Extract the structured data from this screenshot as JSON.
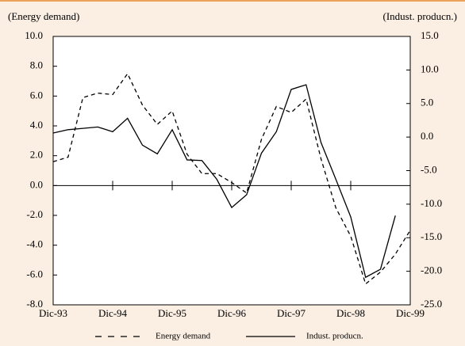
{
  "chart_data": {
    "type": "line",
    "y_label": "(Energy demand)",
    "y2_label": "(Indust. producn.)",
    "categories": [
      "Dic-93",
      null,
      null,
      null,
      "Dic-94",
      null,
      null,
      null,
      "Dic-95",
      null,
      null,
      null,
      "Dic-96",
      null,
      null,
      null,
      "Dic-97",
      null,
      null,
      null,
      "Dic-98",
      null,
      null,
      null,
      "Dic-99"
    ],
    "series": [
      {
        "name": "Energy demand",
        "color": "#000000",
        "line_style": "dashed",
        "values": [
          1.6,
          1.9,
          5.9,
          6.2,
          6.1,
          7.5,
          5.4,
          4.1,
          5.0,
          2.1,
          0.8,
          0.8,
          0.2,
          -0.5,
          3.1,
          5.3,
          4.9,
          5.8,
          1.8,
          -1.5,
          -3.4,
          -6.6,
          -5.8,
          -4.6,
          -3.0
        ]
      },
      {
        "name": "Indust. producn.",
        "color": "#000000",
        "line_style": "solid",
        "axis": "y2",
        "values": [
          0.6,
          1.1,
          1.3,
          1.5,
          0.8,
          2.8,
          -1.2,
          -2.5,
          1.1,
          -3.4,
          -3.5,
          -6.3,
          -10.5,
          -8.6,
          -2.4,
          0.8,
          7.1,
          7.8,
          -0.8,
          -6.3,
          -11.9,
          -20.9,
          -19.7,
          -11.7,
          null
        ]
      }
    ],
    "ylim": [
      -8,
      10
    ],
    "yticks": [
      {
        "value": -8,
        "label": "-8.0"
      },
      {
        "value": -6,
        "label": "-6.0"
      },
      {
        "value": -4,
        "label": "-4.0"
      },
      {
        "value": -2,
        "label": "-2.0"
      },
      {
        "value": 0,
        "label": "0.0"
      },
      {
        "value": 2,
        "label": "2.0"
      },
      {
        "value": 4,
        "label": "4.0"
      },
      {
        "value": 6,
        "label": "6.0"
      },
      {
        "value": 8,
        "label": "8.0"
      },
      {
        "value": 10,
        "label": "10.0"
      }
    ],
    "y2lim": [
      -25,
      15
    ],
    "y2ticks": [
      {
        "value": -25,
        "label": "-25.0"
      },
      {
        "value": -20,
        "label": "-20.0"
      },
      {
        "value": -15,
        "label": "-15.0"
      },
      {
        "value": -10,
        "label": "-10.0"
      },
      {
        "value": -5,
        "label": "-5.0"
      },
      {
        "value": 0,
        "label": "0.0"
      },
      {
        "value": 5,
        "label": "5.0"
      },
      {
        "value": 10,
        "label": "10.0"
      },
      {
        "value": 15,
        "label": "15.0"
      }
    ],
    "zero_line": true
  }
}
